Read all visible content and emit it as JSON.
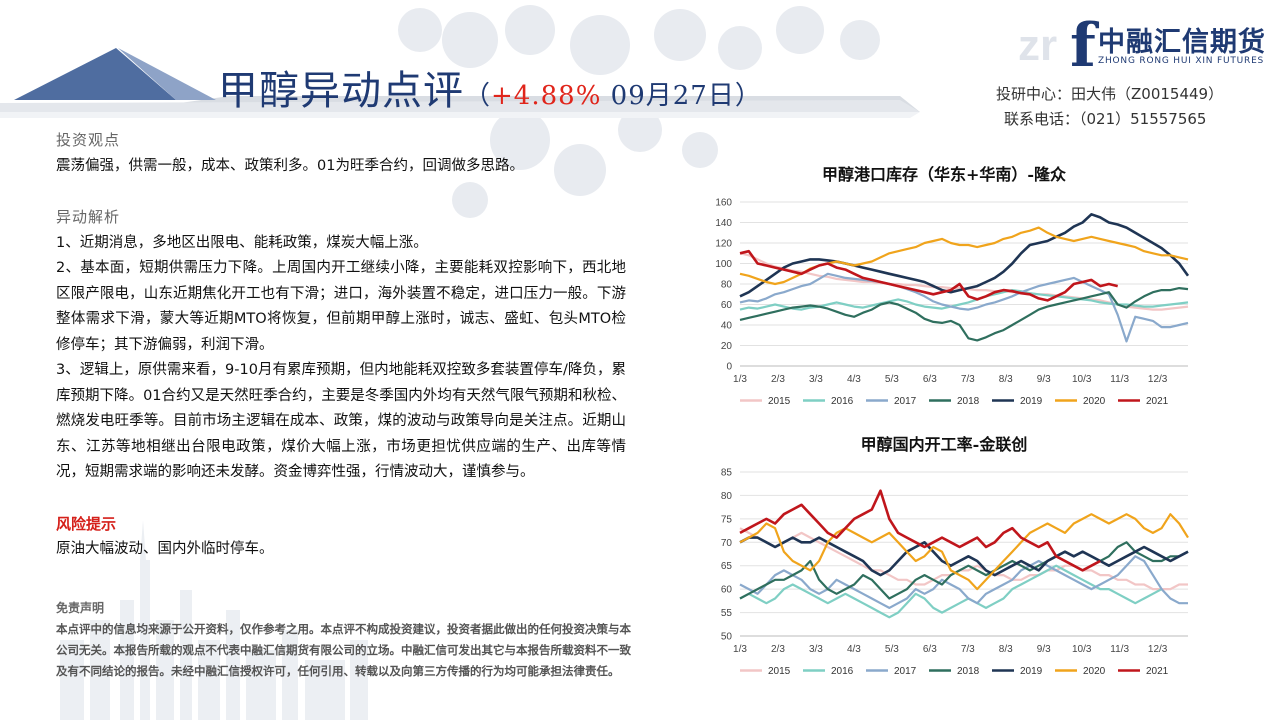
{
  "header": {
    "title": "甲醇异动点评",
    "change_prefix": "（",
    "change_pct": "+4.88%",
    "date": " 09月27日）",
    "analyst": "投研中心：田大伟（Z0015449）",
    "phone": "联系电话：（021）51557565"
  },
  "logo": {
    "cn": "中融汇信期货",
    "en": "ZHONG RONG HUI XIN FUTURES",
    "mark": "f",
    "watermark": "zr"
  },
  "sections": {
    "view_title": "投资观点",
    "view_text": "震荡偏强，供需一般，成本、政策利多。01为旺季合约，回调做多思路。",
    "analysis_title": "异动解析",
    "analysis_items": [
      "1、近期消息，多地区出限电、能耗政策，煤炭大幅上涨。",
      "2、基本面，短期供需压力下降。上周国内开工继续小降，主要能耗双控影响下，西北地区限产限电，山东近期焦化开工也有下滑；进口，海外装置不稳定，进口压力一般。下游整体需求下滑，蒙大等近期MTO将恢复，但前期甲醇上涨时，诚志、盛虹、包头MTO检修停车；其下游偏弱，利润下滑。",
      "3、逻辑上，原供需来看，9-10月有累库预期，但内地能耗双控致多套装置停车/降负，累库预期下降。01合约又是天然旺季合约，主要是冬季国内外均有天然气限气预期和秋检、燃烧发电旺季等。目前市场主逻辑在成本、政策，煤的波动与政策导向是关注点。近期山东、江苏等地相继出台限电政策，煤价大幅上涨，市场更担忧供应端的生产、出库等情况，短期需求端的影响还未发酵。资金博弈性强，行情波动大，谨慎参与。"
    ],
    "risk_title": "风险提示",
    "risk_text": "原油大幅波动、国内外临时停车。",
    "disclaimer_title": "免责声明",
    "disclaimer_text": "本点评中的信息均来源于公开资料，仅作参考之用。本点评不构成投资建议，投资者据此做出的任何投资决策与本公司无关。本报告所载的观点不代表中融汇信期货有限公司的立场。中融汇信可发出其它与本报告所载资料不一致及有不同结论的报告。未经中融汇信授权许可，任何引用、转载以及向第三方传播的行为均可能承担法律责任。"
  },
  "chart_data": [
    {
      "type": "line",
      "title": "甲醇港口库存（华东+华南）-隆众",
      "xlabel": "",
      "ylabel": "",
      "ylim": [
        0,
        160
      ],
      "yticks": [
        0,
        20,
        40,
        60,
        80,
        100,
        120,
        140,
        160
      ],
      "xticks": [
        "1/3",
        "2/3",
        "3/3",
        "4/3",
        "5/3",
        "6/3",
        "7/3",
        "8/3",
        "9/3",
        "10/3",
        "11/3",
        "12/3"
      ],
      "x_count": 52,
      "grid": true,
      "legend": "bottom",
      "colors": [
        "#f2c6c6",
        "#7fcfc4",
        "#8aa9cc",
        "#2f6f5e",
        "#1f3554",
        "#f0a41c",
        "#c0161c"
      ],
      "series": [
        {
          "name": "2015",
          "values": [
            110,
            108,
            104,
            100,
            97,
            95,
            93,
            92,
            90,
            88,
            87,
            85,
            84,
            83,
            82,
            82,
            81,
            80,
            80,
            79,
            79,
            78,
            77,
            77,
            76,
            76,
            75,
            74,
            74,
            73,
            73,
            72,
            72,
            71,
            70,
            70,
            69,
            68,
            67,
            66,
            65,
            64,
            62,
            60,
            58,
            57,
            56,
            55,
            55,
            56,
            57,
            58
          ]
        },
        {
          "name": "2016",
          "values": [
            55,
            57,
            56,
            58,
            60,
            58,
            56,
            55,
            57,
            58,
            60,
            62,
            60,
            58,
            57,
            59,
            61,
            63,
            65,
            63,
            60,
            58,
            57,
            56,
            58,
            60,
            62,
            65,
            68,
            70,
            72,
            74,
            73,
            71,
            70,
            69,
            68,
            67,
            66,
            65,
            64,
            62,
            61,
            60,
            60,
            59,
            58,
            58,
            59,
            60,
            61,
            62
          ]
        },
        {
          "name": "2017",
          "values": [
            62,
            64,
            63,
            66,
            70,
            72,
            75,
            78,
            80,
            85,
            90,
            88,
            86,
            85,
            84,
            83,
            82,
            80,
            78,
            75,
            72,
            68,
            63,
            60,
            58,
            56,
            55,
            57,
            60,
            62,
            65,
            68,
            72,
            75,
            78,
            80,
            82,
            84,
            86,
            82,
            78,
            74,
            70,
            50,
            24,
            48,
            46,
            44,
            38,
            38,
            40,
            42
          ]
        },
        {
          "name": "2018",
          "values": [
            45,
            47,
            49,
            51,
            53,
            55,
            57,
            58,
            59,
            58,
            56,
            53,
            50,
            48,
            52,
            55,
            60,
            62,
            60,
            56,
            52,
            46,
            43,
            42,
            44,
            40,
            27,
            25,
            28,
            32,
            35,
            40,
            45,
            50,
            55,
            58,
            60,
            62,
            64,
            66,
            68,
            70,
            72,
            60,
            57,
            63,
            68,
            72,
            74,
            74,
            76,
            75
          ]
        },
        {
          "name": "2019",
          "values": [
            68,
            72,
            78,
            84,
            90,
            96,
            100,
            102,
            104,
            104,
            103,
            102,
            100,
            98,
            96,
            94,
            92,
            90,
            88,
            86,
            84,
            82,
            78,
            74,
            72,
            74,
            76,
            78,
            82,
            86,
            92,
            100,
            110,
            118,
            120,
            122,
            126,
            130,
            136,
            140,
            148,
            145,
            140,
            138,
            135,
            130,
            125,
            120,
            115,
            108,
            100,
            88
          ]
        },
        {
          "name": "2020",
          "values": [
            90,
            88,
            85,
            82,
            80,
            82,
            86,
            90,
            95,
            98,
            100,
            102,
            100,
            98,
            100,
            102,
            106,
            110,
            112,
            114,
            116,
            120,
            122,
            124,
            120,
            118,
            118,
            116,
            118,
            120,
            124,
            126,
            130,
            132,
            135,
            130,
            126,
            124,
            122,
            124,
            126,
            124,
            122,
            120,
            118,
            116,
            112,
            110,
            108,
            108,
            106,
            104
          ]
        },
        {
          "name": "2021",
          "values": [
            110,
            112,
            100,
            98,
            96,
            94,
            92,
            90,
            94,
            98,
            100,
            96,
            94,
            90,
            86,
            84,
            82,
            80,
            78,
            76,
            74,
            72,
            70,
            72,
            74,
            80,
            68,
            65,
            68,
            72,
            74,
            73,
            71,
            70,
            66,
            64,
            68,
            72,
            80,
            82,
            84,
            78,
            80,
            78,
            null,
            null,
            null,
            null,
            null,
            null,
            null,
            null
          ]
        }
      ]
    },
    {
      "type": "line",
      "title": "甲醇国内开工率-金联创",
      "xlabel": "",
      "ylabel": "",
      "ylim": [
        50,
        85
      ],
      "yticks": [
        50,
        55,
        60,
        65,
        70,
        75,
        80,
        85
      ],
      "xticks": [
        "1/3",
        "2/3",
        "3/3",
        "4/3",
        "5/3",
        "6/3",
        "7/3",
        "8/3",
        "9/3",
        "10/3",
        "11/3",
        "12/3"
      ],
      "x_count": 52,
      "grid": true,
      "legend": "bottom",
      "colors": [
        "#f2c6c6",
        "#7fcfc4",
        "#8aa9cc",
        "#2f6f5e",
        "#1f3554",
        "#f0a41c",
        "#c0161c"
      ],
      "series": [
        {
          "name": "2015",
          "values": [
            73,
            72,
            71,
            70,
            69,
            70,
            71,
            72,
            71,
            70,
            69,
            68,
            67,
            66,
            65,
            64,
            64,
            63,
            62,
            62,
            61,
            61,
            62,
            63,
            63,
            64,
            64,
            65,
            64,
            63,
            63,
            62,
            62,
            63,
            63,
            64,
            64,
            65,
            65,
            64,
            64,
            63,
            63,
            62,
            62,
            61,
            61,
            60,
            60,
            60,
            61,
            61
          ]
        },
        {
          "name": "2016",
          "values": [
            58,
            59,
            58,
            57,
            58,
            60,
            61,
            60,
            59,
            58,
            57,
            58,
            59,
            58,
            57,
            56,
            55,
            54,
            55,
            57,
            59,
            58,
            56,
            55,
            56,
            57,
            58,
            57,
            56,
            57,
            58,
            60,
            61,
            62,
            63,
            64,
            65,
            64,
            63,
            62,
            61,
            60,
            60,
            59,
            58,
            57,
            58,
            59,
            60,
            null,
            null,
            null
          ]
        },
        {
          "name": "2017",
          "values": [
            61,
            60,
            59,
            61,
            63,
            64,
            63,
            62,
            60,
            59,
            60,
            62,
            61,
            60,
            59,
            58,
            57,
            56,
            57,
            58,
            60,
            59,
            60,
            62,
            61,
            60,
            58,
            57,
            59,
            60,
            61,
            62,
            64,
            65,
            66,
            65,
            64,
            63,
            62,
            61,
            60,
            61,
            62,
            63,
            65,
            67,
            66,
            63,
            60,
            58,
            57,
            57
          ]
        },
        {
          "name": "2018",
          "values": [
            58,
            59,
            60,
            61,
            62,
            62,
            63,
            64,
            66,
            62,
            60,
            59,
            60,
            61,
            63,
            62,
            60,
            58,
            59,
            60,
            62,
            63,
            62,
            61,
            63,
            64,
            65,
            64,
            63,
            64,
            65,
            66,
            65,
            64,
            65,
            66,
            67,
            66,
            65,
            64,
            65,
            66,
            67,
            69,
            70,
            68,
            67,
            66,
            66,
            67,
            67,
            68
          ]
        },
        {
          "name": "2019",
          "values": [
            70,
            71,
            71,
            70,
            69,
            70,
            71,
            70,
            70,
            71,
            70,
            69,
            68,
            67,
            66,
            64,
            63,
            64,
            66,
            68,
            69,
            70,
            68,
            66,
            65,
            66,
            67,
            66,
            64,
            63,
            64,
            65,
            66,
            65,
            64,
            66,
            67,
            68,
            67,
            68,
            67,
            66,
            65,
            66,
            67,
            68,
            69,
            68,
            67,
            66,
            67,
            68
          ]
        },
        {
          "name": "2020",
          "values": [
            70,
            71,
            72,
            74,
            73,
            68,
            66,
            65,
            64,
            66,
            70,
            72,
            73,
            72,
            71,
            70,
            71,
            72,
            70,
            68,
            66,
            67,
            69,
            68,
            64,
            63,
            62,
            60,
            62,
            64,
            66,
            68,
            70,
            72,
            73,
            74,
            73,
            72,
            74,
            75,
            76,
            75,
            74,
            75,
            76,
            75,
            73,
            72,
            73,
            76,
            74,
            71
          ]
        },
        {
          "name": "2021",
          "values": [
            72,
            73,
            74,
            75,
            74,
            76,
            77,
            78,
            76,
            74,
            72,
            71,
            73,
            75,
            76,
            77,
            81,
            75,
            72,
            71,
            70,
            69,
            70,
            71,
            70,
            69,
            70,
            71,
            69,
            70,
            72,
            73,
            71,
            70,
            69,
            70,
            67,
            66,
            65,
            64,
            65,
            66,
            null,
            null,
            null,
            null,
            null,
            null,
            null,
            null,
            null,
            null
          ]
        }
      ]
    }
  ]
}
